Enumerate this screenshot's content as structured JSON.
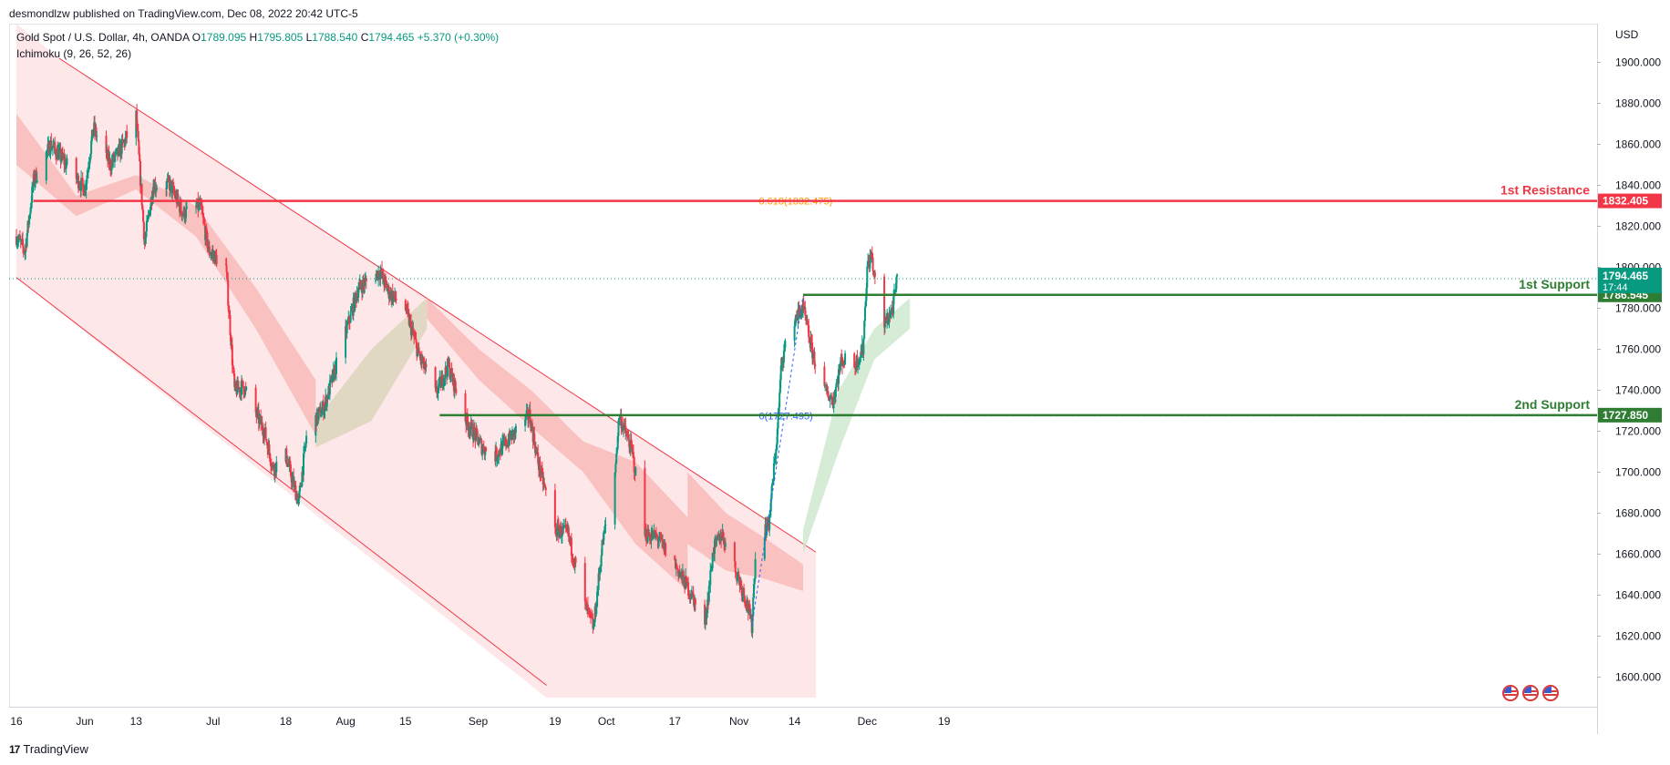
{
  "publish_line": "desmondlzw published on TradingView.com, Dec 08, 2022 20:42 UTC-5",
  "legend": {
    "symbol": "Gold Spot / U.S. Dollar, 4h, OANDA",
    "open_label": "O",
    "open": "1789.095",
    "high_label": "H",
    "high": "1795.805",
    "low_label": "L",
    "low": "1788.540",
    "close_label": "C",
    "close": "1794.465",
    "change": "+5.370 (+0.30%)",
    "indicator": "Ichimoku (9, 26, 52, 26)"
  },
  "footer": {
    "brand": "TradingView",
    "logo": "17"
  },
  "colors": {
    "up": "#089981",
    "down": "#f23645",
    "resistance": "#f23645",
    "support": "#2e7d32",
    "channel": "#f23645",
    "cloud_bear": "#f8b4b4",
    "cloud_bull": "#c8e6c9",
    "fib": "#ff9800"
  },
  "chart_data": {
    "type": "candlestick",
    "currency": "USD",
    "ylim": [
      1590,
      1910
    ],
    "y_ticks": [
      1600,
      1620,
      1640,
      1660,
      1680,
      1700,
      1720,
      1740,
      1760,
      1780,
      1800,
      1820,
      1840,
      1860,
      1880,
      1900
    ],
    "x_ticks": [
      {
        "date": "2022-05-16",
        "label": "16"
      },
      {
        "date": "2022-06-01",
        "label": "Jun"
      },
      {
        "date": "2022-06-13",
        "label": "13"
      },
      {
        "date": "2022-07-01",
        "label": "Jul"
      },
      {
        "date": "2022-07-18",
        "label": "18"
      },
      {
        "date": "2022-08-01",
        "label": "Aug"
      },
      {
        "date": "2022-08-15",
        "label": "15"
      },
      {
        "date": "2022-09-01",
        "label": "Sep"
      },
      {
        "date": "2022-09-19",
        "label": "19"
      },
      {
        "date": "2022-10-01",
        "label": "Oct"
      },
      {
        "date": "2022-10-17",
        "label": "17"
      },
      {
        "date": "2022-11-01",
        "label": "Nov"
      },
      {
        "date": "2022-11-14",
        "label": "14"
      },
      {
        "date": "2022-12-01",
        "label": "Dec"
      },
      {
        "date": "2022-12-19",
        "label": "19"
      }
    ],
    "price_path": [
      [
        "2022-05-16",
        1815
      ],
      [
        "2022-05-18",
        1808
      ],
      [
        "2022-05-20",
        1842
      ],
      [
        "2022-05-24",
        1860
      ],
      [
        "2022-05-27",
        1852
      ],
      [
        "2022-06-01",
        1838
      ],
      [
        "2022-06-03",
        1868
      ],
      [
        "2022-06-07",
        1850
      ],
      [
        "2022-06-10",
        1860
      ],
      [
        "2022-06-13",
        1874
      ],
      [
        "2022-06-15",
        1812
      ],
      [
        "2022-06-17",
        1840
      ],
      [
        "2022-06-21",
        1840
      ],
      [
        "2022-06-24",
        1826
      ],
      [
        "2022-06-28",
        1830
      ],
      [
        "2022-06-30",
        1808
      ],
      [
        "2022-07-04",
        1800
      ],
      [
        "2022-07-06",
        1740
      ],
      [
        "2022-07-08",
        1742
      ],
      [
        "2022-07-13",
        1720
      ],
      [
        "2022-07-15",
        1702
      ],
      [
        "2022-07-18",
        1708
      ],
      [
        "2022-07-21",
        1685
      ],
      [
        "2022-07-23",
        1720
      ],
      [
        "2022-07-27",
        1732
      ],
      [
        "2022-08-01",
        1768
      ],
      [
        "2022-08-04",
        1790
      ],
      [
        "2022-08-09",
        1798
      ],
      [
        "2022-08-11",
        1788
      ],
      [
        "2022-08-15",
        1780
      ],
      [
        "2022-08-18",
        1758
      ],
      [
        "2022-08-22",
        1738
      ],
      [
        "2022-08-25",
        1752
      ],
      [
        "2022-08-29",
        1726
      ],
      [
        "2022-09-02",
        1712
      ],
      [
        "2022-09-05",
        1708
      ],
      [
        "2022-09-09",
        1718
      ],
      [
        "2022-09-13",
        1728
      ],
      [
        "2022-09-15",
        1705
      ],
      [
        "2022-09-19",
        1672
      ],
      [
        "2022-09-22",
        1670
      ],
      [
        "2022-09-26",
        1635
      ],
      [
        "2022-09-28",
        1624
      ],
      [
        "2022-09-30",
        1664
      ],
      [
        "2022-10-03",
        1700
      ],
      [
        "2022-10-04",
        1728
      ],
      [
        "2022-10-07",
        1710
      ],
      [
        "2022-10-10",
        1670
      ],
      [
        "2022-10-13",
        1668
      ],
      [
        "2022-10-17",
        1655
      ],
      [
        "2022-10-21",
        1640
      ],
      [
        "2022-10-24",
        1625
      ],
      [
        "2022-10-26",
        1662
      ],
      [
        "2022-10-28",
        1670
      ],
      [
        "2022-11-01",
        1648
      ],
      [
        "2022-11-03",
        1635
      ],
      [
        "2022-11-04",
        1625
      ],
      [
        "2022-11-05",
        1665
      ],
      [
        "2022-11-08",
        1675
      ],
      [
        "2022-11-10",
        1720
      ],
      [
        "2022-11-11",
        1755
      ],
      [
        "2022-11-14",
        1775
      ],
      [
        "2022-11-16",
        1780
      ],
      [
        "2022-11-18",
        1760
      ],
      [
        "2022-11-21",
        1740
      ],
      [
        "2022-11-23",
        1735
      ],
      [
        "2022-11-25",
        1755
      ],
      [
        "2022-11-28",
        1752
      ],
      [
        "2022-11-30",
        1760
      ],
      [
        "2022-12-01",
        1800
      ],
      [
        "2022-12-02",
        1806
      ],
      [
        "2022-12-03",
        1790
      ],
      [
        "2022-12-05",
        1772
      ],
      [
        "2022-12-07",
        1780
      ],
      [
        "2022-12-08",
        1794
      ]
    ],
    "ichimoku_cloud": [
      {
        "from": "2022-05-16",
        "to": "2022-07-25",
        "top": [
          1875,
          1835,
          1845,
          1830,
          1790,
          1745
        ],
        "bottom": [
          1850,
          1825,
          1838,
          1815,
          1770,
          1718
        ],
        "bias": "bear"
      },
      {
        "from": "2022-07-25",
        "to": "2022-08-20",
        "top": [
          1725,
          1760,
          1785
        ],
        "bottom": [
          1712,
          1725,
          1770
        ],
        "bias": "neutral"
      },
      {
        "from": "2022-08-20",
        "to": "2022-10-20",
        "top": [
          1785,
          1760,
          1740,
          1715,
          1705,
          1678
        ],
        "bottom": [
          1775,
          1745,
          1722,
          1700,
          1665,
          1642
        ],
        "bias": "bear"
      },
      {
        "from": "2022-10-20",
        "to": "2022-11-16",
        "top": [
          1700,
          1680,
          1668,
          1655
        ],
        "bottom": [
          1665,
          1652,
          1648,
          1642
        ],
        "bias": "bear"
      },
      {
        "from": "2022-11-16",
        "to": "2022-12-11",
        "top": [
          1672,
          1740,
          1770,
          1785
        ],
        "bottom": [
          1660,
          1710,
          1755,
          1770
        ],
        "bias": "bull"
      }
    ],
    "channel": {
      "upper": [
        [
          "2022-05-26",
          1902
        ],
        [
          "2022-11-19",
          1661
        ]
      ],
      "lower": [
        [
          "2022-05-16",
          1795
        ],
        [
          "2022-09-17",
          1596
        ]
      ],
      "shade_end": "2022-11-19"
    },
    "levels": [
      {
        "name": "1st Resistance",
        "value": 1832.405,
        "label": "1832.405",
        "from": "2022-05-20",
        "color": "#f23645"
      },
      {
        "name": "1st Support",
        "value": 1786.545,
        "label": "1786.545",
        "from": "2022-11-16",
        "color": "#2e7d32"
      },
      {
        "name": "2nd Support",
        "value": 1727.85,
        "label": "1727.850",
        "from": "2022-08-23",
        "color": "#2e7d32"
      }
    ],
    "fib": {
      "low_label": "0(1727.495)",
      "low": 1727.495,
      "high_label": "0.618(1832.475)",
      "high": 1832.475
    },
    "last_price": {
      "value": 1794.465,
      "label": "1794.465",
      "countdown": "17:44"
    }
  }
}
